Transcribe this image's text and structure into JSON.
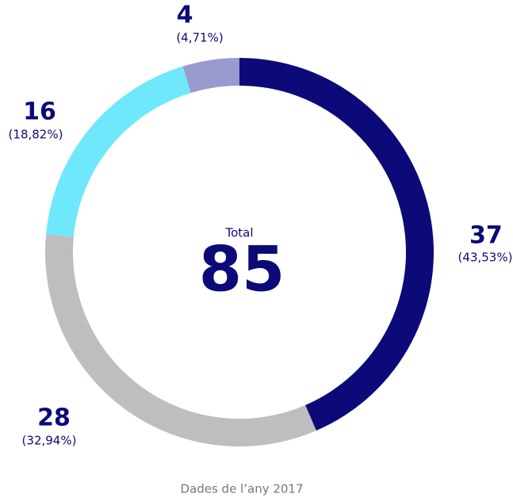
{
  "chart_data": {
    "type": "donut",
    "values": [
      37,
      28,
      16,
      4
    ],
    "percent_labels": [
      "(43,53%)",
      "(32,94%)",
      "(18,82%)",
      "(4,71%)"
    ],
    "colors": [
      "#0b0a78",
      "#bdbec0",
      "#6fe8fb",
      "#9b9acf"
    ],
    "total_label": "Total",
    "total": 85,
    "footnote": "Dades de l’any 2017"
  }
}
